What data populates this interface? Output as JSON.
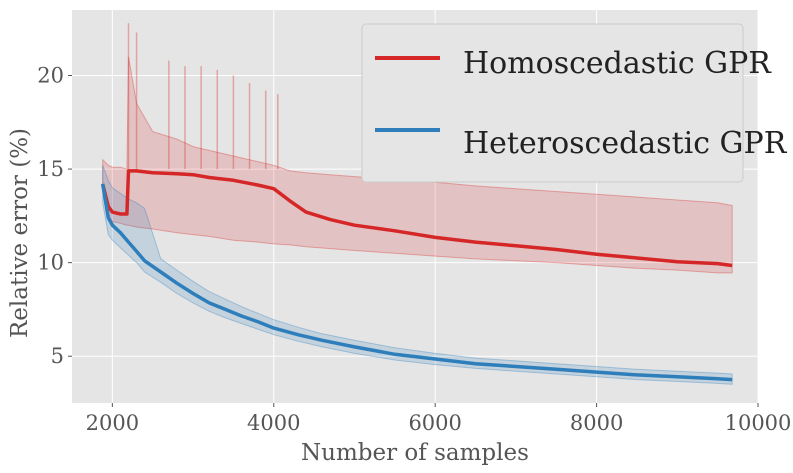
{
  "chart_data": {
    "type": "line",
    "title": "",
    "xlabel": "Number of samples",
    "ylabel": "Relative error (%)",
    "xlim": [
      1500,
      10000
    ],
    "ylim": [
      2.5,
      23.5
    ],
    "xticks": [
      2000,
      4000,
      6000,
      8000,
      10000
    ],
    "xtick_labels": [
      "2000",
      "4000",
      "6000",
      "8000",
      "10000"
    ],
    "yticks": [
      5,
      10,
      15,
      20
    ],
    "ytick_labels": [
      "5",
      "10",
      "15",
      "20"
    ],
    "grid": true,
    "legend_position": "top-right",
    "series": [
      {
        "name": "Homoscedastic GPR",
        "color": "#d62728",
        "x": [
          1880,
          1950,
          2000,
          2100,
          2180,
          2200,
          2300,
          2500,
          2800,
          3000,
          3200,
          3500,
          3800,
          4000,
          4200,
          4400,
          4700,
          5000,
          5500,
          6000,
          6500,
          7000,
          7500,
          8000,
          8500,
          9000,
          9500,
          9680
        ],
        "values": [
          14.2,
          13.0,
          12.7,
          12.6,
          12.6,
          14.9,
          14.9,
          14.8,
          14.75,
          14.7,
          14.55,
          14.4,
          14.15,
          13.95,
          13.3,
          12.7,
          12.3,
          12.0,
          11.7,
          11.35,
          11.1,
          10.9,
          10.7,
          10.45,
          10.25,
          10.05,
          9.95,
          9.85
        ],
        "band_lower": [
          14.0,
          12.5,
          12.2,
          12.1,
          12.0,
          12.0,
          11.9,
          11.8,
          11.6,
          11.5,
          11.4,
          11.2,
          11.1,
          11.0,
          10.95,
          10.85,
          10.75,
          10.65,
          10.5,
          10.35,
          10.2,
          10.1,
          10.0,
          9.85,
          9.7,
          9.6,
          9.45,
          9.45
        ],
        "band_upper": [
          15.5,
          15.2,
          15.1,
          15.1,
          15.0,
          21.0,
          18.5,
          17.0,
          16.6,
          16.2,
          16.0,
          15.7,
          15.4,
          15.2,
          14.9,
          14.8,
          14.7,
          14.6,
          14.45,
          14.3,
          14.1,
          13.95,
          13.8,
          13.65,
          13.5,
          13.35,
          13.2,
          13.05
        ],
        "spike_max": [
          [
            2200,
            22.8
          ],
          [
            2300,
            22.3
          ],
          [
            2700,
            20.8
          ],
          [
            2900,
            20.5
          ],
          [
            3100,
            20.5
          ],
          [
            3300,
            20.3
          ],
          [
            3500,
            20.0
          ],
          [
            3700,
            19.6
          ],
          [
            3900,
            19.2
          ],
          [
            4050,
            19.0
          ]
        ]
      },
      {
        "name": "Heteroscedastic GPR",
        "color": "#2e7ebc",
        "x": [
          1880,
          1950,
          2000,
          2100,
          2200,
          2300,
          2400,
          2600,
          2800,
          3000,
          3200,
          3400,
          3600,
          3800,
          4000,
          4300,
          4600,
          5000,
          5500,
          6000,
          6500,
          7000,
          7500,
          8000,
          8500,
          9000,
          9500,
          9680
        ],
        "values": [
          14.2,
          12.4,
          12.0,
          11.6,
          11.1,
          10.6,
          10.1,
          9.5,
          8.9,
          8.35,
          7.85,
          7.5,
          7.15,
          6.85,
          6.5,
          6.15,
          5.85,
          5.5,
          5.1,
          4.85,
          4.6,
          4.45,
          4.3,
          4.15,
          4.0,
          3.9,
          3.8,
          3.75
        ],
        "band_lower": [
          13.2,
          11.5,
          11.2,
          10.8,
          10.4,
          10.0,
          9.5,
          8.95,
          8.35,
          7.85,
          7.4,
          7.05,
          6.75,
          6.45,
          6.15,
          5.8,
          5.5,
          5.15,
          4.8,
          4.55,
          4.35,
          4.2,
          4.05,
          3.9,
          3.75,
          3.65,
          3.55,
          3.5
        ],
        "band_upper": [
          15.2,
          14.4,
          14.0,
          13.7,
          13.4,
          13.2,
          12.9,
          10.2,
          9.6,
          9.0,
          8.45,
          8.05,
          7.65,
          7.3,
          6.95,
          6.55,
          6.2,
          5.85,
          5.45,
          5.15,
          4.9,
          4.75,
          4.6,
          4.45,
          4.3,
          4.2,
          4.1,
          4.05
        ]
      }
    ]
  }
}
